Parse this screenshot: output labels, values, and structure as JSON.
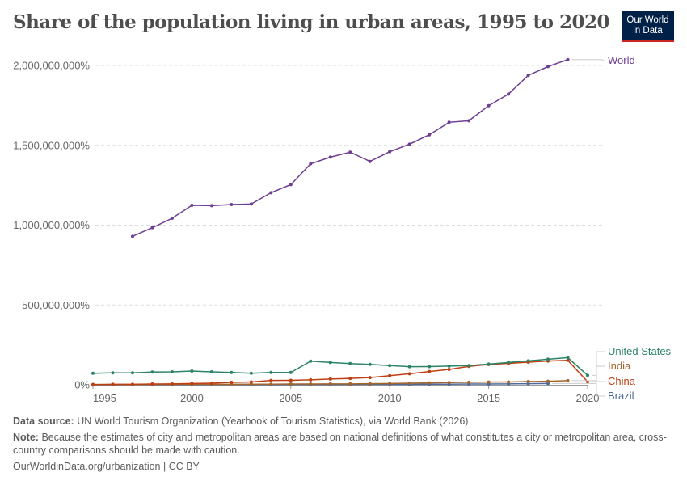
{
  "chart_data": {
    "type": "line",
    "title": "Share of the population living in urban areas, 1995 to 2020",
    "xlabel": "",
    "ylabel": "",
    "xlim": [
      1995,
      2020
    ],
    "ylim": [
      0,
      2000000000
    ],
    "grid": "horizontal dashed",
    "legend_placement": "right (line-end labels)",
    "x_ticks": [
      "1995",
      "2000",
      "2005",
      "2010",
      "2015",
      "2020"
    ],
    "x_tick_values": [
      1995,
      2000,
      2005,
      2010,
      2015,
      2020
    ],
    "y_ticks": [
      "0%",
      "500,000,000%",
      "1,000,000,000%",
      "1,500,000,000%",
      "2,000,000,000%"
    ],
    "y_tick_values": [
      0,
      500000000,
      1000000000,
      1500000000,
      2000000000
    ],
    "series": [
      {
        "name": "World",
        "color": "#6d3e91",
        "start_year": 1997,
        "values": [
          930000000,
          984000000,
          1043000000,
          1124000000,
          1122000000,
          1129000000,
          1132000000,
          1203000000,
          1254000000,
          1384000000,
          1426000000,
          1457000000,
          1399000000,
          1460000000,
          1507000000,
          1566000000,
          1644000000,
          1654000000,
          1748000000,
          1821000000,
          1938000000,
          1993000000,
          2037000000
        ]
      },
      {
        "name": "United States",
        "color": "#2c8465",
        "start_year": 1995,
        "values": [
          72000000,
          75000000,
          75000000,
          80000000,
          81000000,
          86000000,
          81000000,
          77000000,
          72000000,
          77000000,
          77000000,
          148000000,
          140000000,
          133000000,
          128000000,
          120000000,
          113000000,
          114000000,
          117000000,
          120000000,
          130000000,
          140000000,
          150000000,
          160000000,
          170000000,
          59000000
        ]
      },
      {
        "name": "India",
        "color": "#a2662c",
        "start_year": 1995,
        "values": [
          1000000,
          2000000,
          2000000,
          3000000,
          3000000,
          3000000,
          3000000,
          3000000,
          4000000,
          4000000,
          5000000,
          5000000,
          6000000,
          6000000,
          7000000,
          8000000,
          10000000,
          12000000,
          14000000,
          16000000,
          17000000,
          18000000,
          20000000,
          22000000,
          26000000
        ]
      },
      {
        "name": "China",
        "color": "#be3f12",
        "start_year": 1995,
        "values": [
          2000000,
          3000000,
          3000000,
          5000000,
          6000000,
          8000000,
          10000000,
          15000000,
          18000000,
          27000000,
          28000000,
          31000000,
          36000000,
          40000000,
          45000000,
          57000000,
          69000000,
          83000000,
          96000000,
          115000000,
          127000000,
          134000000,
          142000000,
          149000000,
          153000000,
          19000000
        ]
      },
      {
        "name": "Brazil",
        "color": "#4c6a9c",
        "start_year": 1995,
        "values": [
          0,
          0,
          1000000,
          1000000,
          1000000,
          1000000,
          1000000,
          1000000,
          1000000,
          1000000,
          2000000,
          2000000,
          2000000,
          2000000,
          3000000,
          3000000,
          3000000,
          4000000,
          4000000,
          5000000,
          5000000,
          6000000,
          7000000,
          8000000
        ]
      }
    ]
  },
  "logo": {
    "line1": "Our World",
    "line2": "in Data"
  },
  "footer": {
    "source_label": "Data source:",
    "source_text": "UN World Tourism Organization (Yearbook of Tourism Statistics), via World Bank (2026)",
    "note_label": "Note:",
    "note_text": "Because the estimates of city and metropolitan areas are based on national definitions of what constitutes a city or metropolitan area, cross-country comparisons should be made with caution.",
    "url": "OurWorldinData.org/urbanization | CC BY"
  }
}
